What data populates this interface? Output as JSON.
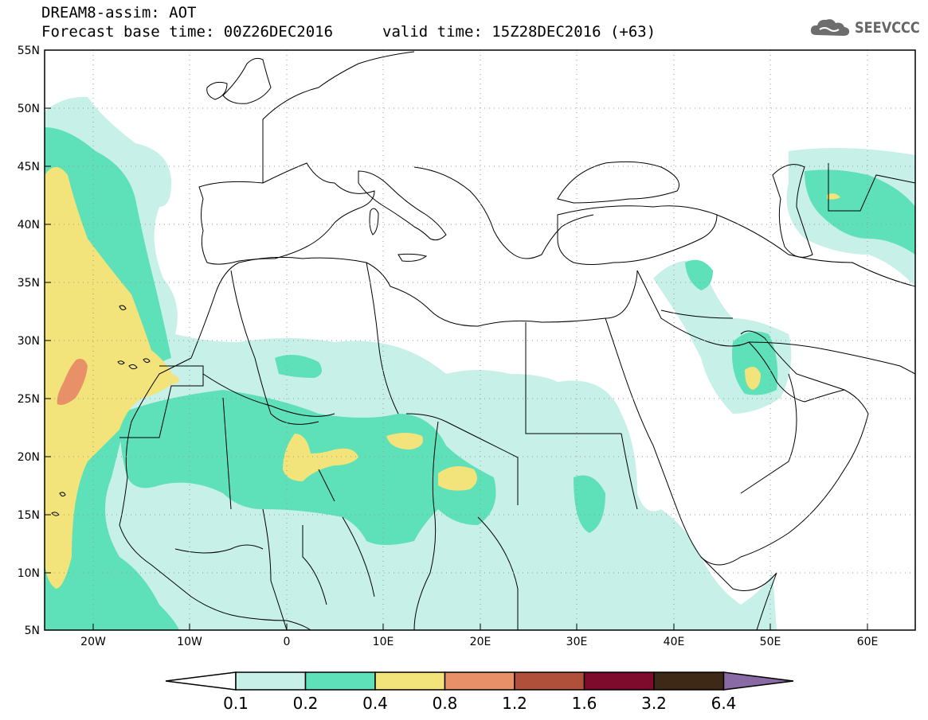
{
  "header": {
    "title_line1": "DREAM8-assim: AOT",
    "title_line2": "Forecast base time: 00Z26DEC2016",
    "valid_time": "valid time: 15Z28DEC2016 (+63)",
    "logo_text": "SEEVCCC"
  },
  "map": {
    "lat_labels": [
      "55N",
      "50N",
      "45N",
      "40N",
      "35N",
      "30N",
      "25N",
      "20N",
      "15N",
      "10N",
      "5N"
    ],
    "lon_labels": [
      "20W",
      "10W",
      "0",
      "10E",
      "20E",
      "30E",
      "40E",
      "50E",
      "60E"
    ]
  },
  "colorbar": {
    "labels": [
      "0.1",
      "0.2",
      "0.4",
      "0.8",
      "1.2",
      "1.6",
      "3.2",
      "6.4"
    ],
    "colors": [
      "#ffffff",
      "#c6f0e8",
      "#5ee0b8",
      "#f2e47a",
      "#e89068",
      "#b0503a",
      "#7e0a2c",
      "#3e2816",
      "#8a6aa4"
    ]
  },
  "colors": {
    "c1": "#c6f0e8",
    "c2": "#5ee0b8",
    "c3": "#f2e47a",
    "c4": "#e89068"
  }
}
